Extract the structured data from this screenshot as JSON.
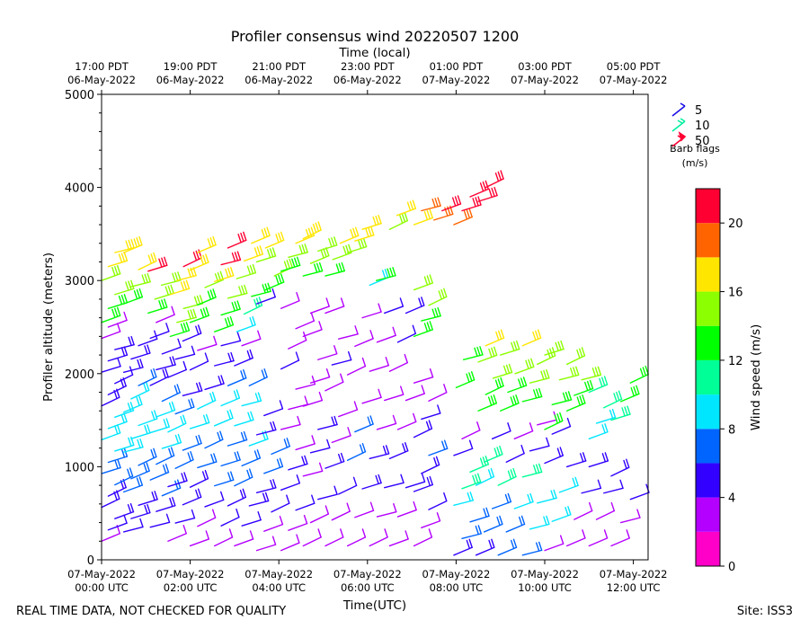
{
  "chart_data": {
    "type": "wind-barb-profile",
    "title": "Profiler consensus wind 20220507 1200",
    "top_axis_label": "Time (local)",
    "xlabel": "Time(UTC)",
    "ylabel": "Profiler altitude (meters)",
    "colorbar_label": "Wind speed (m/s)",
    "xlim_hours_utc": [
      0,
      12.25
    ],
    "ylim": [
      0,
      5000
    ],
    "y_ticks": [
      "0",
      "1000",
      "2000",
      "3000",
      "4000",
      "5000"
    ],
    "y_tick_values": [
      0,
      1000,
      2000,
      3000,
      4000,
      5000
    ],
    "bottom_ticks": [
      {
        "hour": 0,
        "date": "07-May-2022",
        "time": "00:00 UTC"
      },
      {
        "hour": 2,
        "date": "07-May-2022",
        "time": "02:00 UTC"
      },
      {
        "hour": 4,
        "date": "07-May-2022",
        "time": "04:00 UTC"
      },
      {
        "hour": 6,
        "date": "07-May-2022",
        "time": "06:00 UTC"
      },
      {
        "hour": 8,
        "date": "07-May-2022",
        "time": "08:00 UTC"
      },
      {
        "hour": 10,
        "date": "07-May-2022",
        "time": "10:00 UTC"
      },
      {
        "hour": 12,
        "date": "07-May-2022",
        "time": "12:00 UTC"
      }
    ],
    "top_ticks": [
      {
        "hour": 0,
        "time": "17:00 PDT",
        "date": "06-May-2022"
      },
      {
        "hour": 2,
        "time": "19:00 PDT",
        "date": "06-May-2022"
      },
      {
        "hour": 4,
        "time": "21:00 PDT",
        "date": "06-May-2022"
      },
      {
        "hour": 6,
        "time": "23:00 PDT",
        "date": "06-May-2022"
      },
      {
        "hour": 8,
        "time": "01:00 PDT",
        "date": "07-May-2022"
      },
      {
        "hour": 10,
        "time": "03:00 PDT",
        "date": "07-May-2022"
      },
      {
        "hour": 12,
        "time": "05:00 PDT",
        "date": "07-May-2022"
      }
    ],
    "legend": {
      "title": "Barb flags",
      "units": "(m/s)",
      "entries": [
        {
          "label": "5",
          "speed": 5,
          "color": "#1a0fe6"
        },
        {
          "label": "10",
          "speed": 10,
          "color": "#00f0a0"
        },
        {
          "label": "50",
          "speed": 50,
          "color": "#ff0033"
        }
      ]
    },
    "colorbar": {
      "min": 0,
      "max": 22,
      "tick_labels": [
        "0",
        "4",
        "8",
        "12",
        "16",
        "20"
      ],
      "tick_values": [
        0,
        4,
        8,
        12,
        16,
        20
      ],
      "colors": [
        "#ff00c8",
        "#b400ff",
        "#3200ff",
        "#0064ff",
        "#00e6ff",
        "#00ff96",
        "#00ff00",
        "#8cff00",
        "#ffe600",
        "#ff6400",
        "#ff0032"
      ]
    },
    "barb_groups": [
      {
        "t0": 0.0,
        "t1": 0.45,
        "h0": 200,
        "h1": 2500,
        "speeds": [
          3,
          4,
          5,
          5,
          5,
          6,
          6,
          7,
          8,
          9,
          9,
          8,
          5,
          5,
          4,
          4,
          5,
          5,
          3,
          3
        ]
      },
      {
        "t0": 0.0,
        "t1": 0.45,
        "h0": 2550,
        "h1": 3300,
        "speeds": [
          12,
          13,
          14,
          14,
          16,
          17
        ]
      },
      {
        "t0": 0.5,
        "t1": 1.0,
        "h0": 300,
        "h1": 2300,
        "speeds": [
          4,
          5,
          5,
          6,
          6,
          7,
          8,
          8,
          9,
          9,
          8,
          6,
          5,
          5,
          4
        ]
      },
      {
        "t0": 0.5,
        "t1": 1.0,
        "h0": 2750,
        "h1": 3300,
        "speeds": [
          13,
          14,
          16,
          17
        ]
      },
      {
        "t0": 1.1,
        "t1": 1.5,
        "h0": 350,
        "h1": 2550,
        "speeds": [
          4,
          5,
          6,
          6,
          7,
          8,
          8,
          9,
          7,
          5,
          5,
          4,
          4,
          3
        ]
      },
      {
        "t0": 1.05,
        "t1": 1.5,
        "h0": 2650,
        "h1": 3100,
        "speeds": [
          13,
          14,
          15,
          21
        ]
      },
      {
        "t0": 1.5,
        "t1": 2.0,
        "h0": 200,
        "h1": 2350,
        "speeds": [
          3,
          4,
          5,
          5,
          6,
          7,
          8,
          6,
          5,
          4,
          4,
          5
        ]
      },
      {
        "t0": 1.55,
        "t1": 2.0,
        "h0": 2400,
        "h1": 3150,
        "speeds": [
          13,
          14,
          15,
          16,
          17,
          21
        ]
      },
      {
        "t0": 2.0,
        "t1": 2.5,
        "h0": 150,
        "h1": 2250,
        "speeds": [
          2,
          3,
          4,
          5,
          6,
          7,
          8,
          8,
          5,
          4,
          3
        ]
      },
      {
        "t0": 2.0,
        "t1": 2.5,
        "h0": 2550,
        "h1": 3300,
        "speeds": [
          12,
          13,
          15,
          16,
          17
        ]
      },
      {
        "t0": 2.55,
        "t1": 3.0,
        "h0": 150,
        "h1": 2300,
        "speeds": [
          3,
          4,
          5,
          6,
          7,
          7,
          8,
          9,
          6,
          5,
          4
        ]
      },
      {
        "t0": 2.55,
        "t1": 3.0,
        "h0": 2450,
        "h1": 3350,
        "speeds": [
          12,
          13,
          15,
          16,
          20,
          21
        ]
      },
      {
        "t0": 3.0,
        "t1": 3.5,
        "h0": 150,
        "h1": 2300,
        "speeds": [
          3,
          4,
          5,
          6,
          7,
          8,
          9,
          8,
          6,
          5,
          3
        ]
      },
      {
        "t0": 3.05,
        "t1": 3.55,
        "h0": 2450,
        "h1": 3400,
        "speeds": [
          9,
          10,
          12,
          14,
          16,
          17
        ]
      },
      {
        "t0": 3.5,
        "t1": 4.0,
        "h0": 100,
        "h1": 1550,
        "speeds": [
          2,
          3,
          4,
          5,
          6,
          6,
          5,
          4
        ]
      },
      {
        "t0": 3.5,
        "t1": 4.1,
        "h0": 2750,
        "h1": 3350,
        "speeds": [
          4,
          13,
          14,
          15,
          17
        ]
      },
      {
        "t0": 4.05,
        "t1": 4.55,
        "h0": 100,
        "h1": 2700,
        "speeds": [
          2,
          3,
          4,
          4,
          5,
          3,
          3,
          2,
          3,
          4,
          3,
          3,
          2
        ]
      },
      {
        "t0": 4.05,
        "t1": 4.55,
        "h0": 3100,
        "h1": 3400,
        "speeds": [
          13,
          14,
          16
        ]
      },
      {
        "t0": 4.55,
        "t1": 5.05,
        "h0": 150,
        "h1": 2650,
        "speeds": [
          2,
          3,
          4,
          3,
          4,
          5,
          3,
          2,
          3,
          3,
          2
        ]
      },
      {
        "t0": 4.55,
        "t1": 5.05,
        "h0": 3050,
        "h1": 3450,
        "speeds": [
          13,
          14,
          15,
          16
        ]
      },
      {
        "t0": 5.05,
        "t1": 5.5,
        "h0": 150,
        "h1": 2650,
        "speeds": [
          2,
          3,
          4,
          5,
          3,
          3,
          2,
          4,
          3,
          2
        ]
      },
      {
        "t0": 5.05,
        "t1": 5.55,
        "h0": 3050,
        "h1": 3400,
        "speeds": [
          13,
          14,
          16
        ]
      },
      {
        "t0": 5.55,
        "t1": 6.05,
        "h0": 150,
        "h1": 2600,
        "speeds": [
          2,
          3,
          5,
          7,
          6,
          3,
          2,
          3,
          2
        ]
      },
      {
        "t0": 5.55,
        "t1": 6.05,
        "h0": 3300,
        "h1": 3550,
        "speeds": [
          14,
          16,
          17
        ]
      },
      {
        "t0": 6.05,
        "t1": 6.55,
        "h0": 150,
        "h1": 2650,
        "speeds": [
          2,
          3,
          4,
          5,
          3,
          2,
          3,
          2,
          4
        ]
      },
      {
        "t0": 6.05,
        "t1": 6.5,
        "h0": 2950,
        "h1": 3000,
        "speeds": [
          9,
          13
        ]
      },
      {
        "t0": 6.5,
        "t1": 7.05,
        "h0": 150,
        "h1": 2650,
        "speeds": [
          2,
          3,
          4,
          5,
          3,
          2,
          3,
          4,
          5
        ]
      },
      {
        "t0": 6.5,
        "t1": 7.0,
        "h0": 3550,
        "h1": 3700,
        "speeds": [
          15,
          17
        ]
      },
      {
        "t0": 7.05,
        "t1": 7.55,
        "h0": 150,
        "h1": 1900,
        "speeds": [
          3,
          3,
          4,
          5,
          5,
          6,
          5,
          4,
          3,
          2
        ]
      },
      {
        "t0": 7.05,
        "t1": 7.55,
        "h0": 2400,
        "h1": 2900,
        "speeds": [
          12,
          13,
          14,
          15
        ]
      },
      {
        "t0": 7.05,
        "t1": 7.55,
        "h0": 3600,
        "h1": 3750,
        "speeds": [
          16,
          19
        ]
      },
      {
        "t0": 7.5,
        "t1": 8.05,
        "h0": 3650,
        "h1": 3750,
        "speeds": [
          19,
          20
        ]
      },
      {
        "t0": 7.95,
        "t1": 8.5,
        "h0": 50,
        "h1": 1300,
        "speeds": [
          5,
          6,
          7,
          9,
          10,
          11,
          4,
          3
        ]
      },
      {
        "t0": 7.95,
        "t1": 8.5,
        "h0": 3600,
        "h1": 3900,
        "speeds": [
          19,
          20,
          21
        ]
      },
      {
        "t0": 8.0,
        "t1": 8.5,
        "h0": 1850,
        "h1": 2150,
        "speeds": [
          12,
          13
        ]
      },
      {
        "t0": 8.45,
        "t1": 9.0,
        "h0": 50,
        "h1": 1300,
        "speeds": [
          5,
          6,
          7,
          9,
          10,
          4
        ]
      },
      {
        "t0": 8.5,
        "t1": 9.0,
        "h0": 1600,
        "h1": 2300,
        "speeds": [
          12,
          13,
          14,
          15,
          16
        ]
      },
      {
        "t0": 8.5,
        "t1": 9.0,
        "h0": 3850,
        "h1": 4000,
        "speeds": [
          21,
          22
        ]
      },
      {
        "t0": 8.95,
        "t1": 9.5,
        "h0": 50,
        "h1": 1300,
        "speeds": [
          6,
          7,
          9,
          10,
          4,
          3
        ]
      },
      {
        "t0": 9.0,
        "t1": 9.5,
        "h0": 1600,
        "h1": 2200,
        "speeds": [
          12,
          13,
          14,
          15
        ]
      },
      {
        "t0": 9.5,
        "t1": 10.0,
        "h0": 50,
        "h1": 1450,
        "speeds": [
          7,
          8,
          9,
          10,
          4,
          3
        ]
      },
      {
        "t0": 9.5,
        "t1": 10.0,
        "h0": 1700,
        "h1": 2300,
        "speeds": [
          13,
          14,
          15,
          16
        ]
      },
      {
        "t0": 10.0,
        "t1": 10.5,
        "h0": 100,
        "h1": 1350,
        "speeds": [
          2,
          8,
          9,
          5,
          4
        ]
      },
      {
        "t0": 10.0,
        "t1": 10.5,
        "h0": 1400,
        "h1": 2200,
        "speeds": [
          12,
          13,
          14,
          15
        ]
      },
      {
        "t0": 10.5,
        "t1": 11.0,
        "h0": 150,
        "h1": 1000,
        "speeds": [
          2,
          3,
          4,
          5
        ]
      },
      {
        "t0": 10.5,
        "t1": 11.0,
        "h0": 1600,
        "h1": 2100,
        "speeds": [
          12,
          13,
          14,
          15
        ]
      },
      {
        "t0": 11.0,
        "t1": 11.5,
        "h0": 150,
        "h1": 1000,
        "speeds": [
          2,
          3,
          4,
          5
        ]
      },
      {
        "t0": 11.0,
        "t1": 11.5,
        "h0": 1300,
        "h1": 1800,
        "speeds": [
          8,
          9,
          10,
          11
        ]
      },
      {
        "t0": 11.5,
        "t1": 12.15,
        "h0": 150,
        "h1": 900,
        "speeds": [
          2,
          3,
          4,
          5
        ]
      },
      {
        "t0": 11.5,
        "t1": 12.15,
        "h0": 1500,
        "h1": 1900,
        "speeds": [
          11,
          12,
          13
        ]
      }
    ]
  },
  "footer": {
    "left": "REAL TIME DATA, NOT CHECKED FOR QUALITY",
    "right": "Site: ISS3"
  }
}
